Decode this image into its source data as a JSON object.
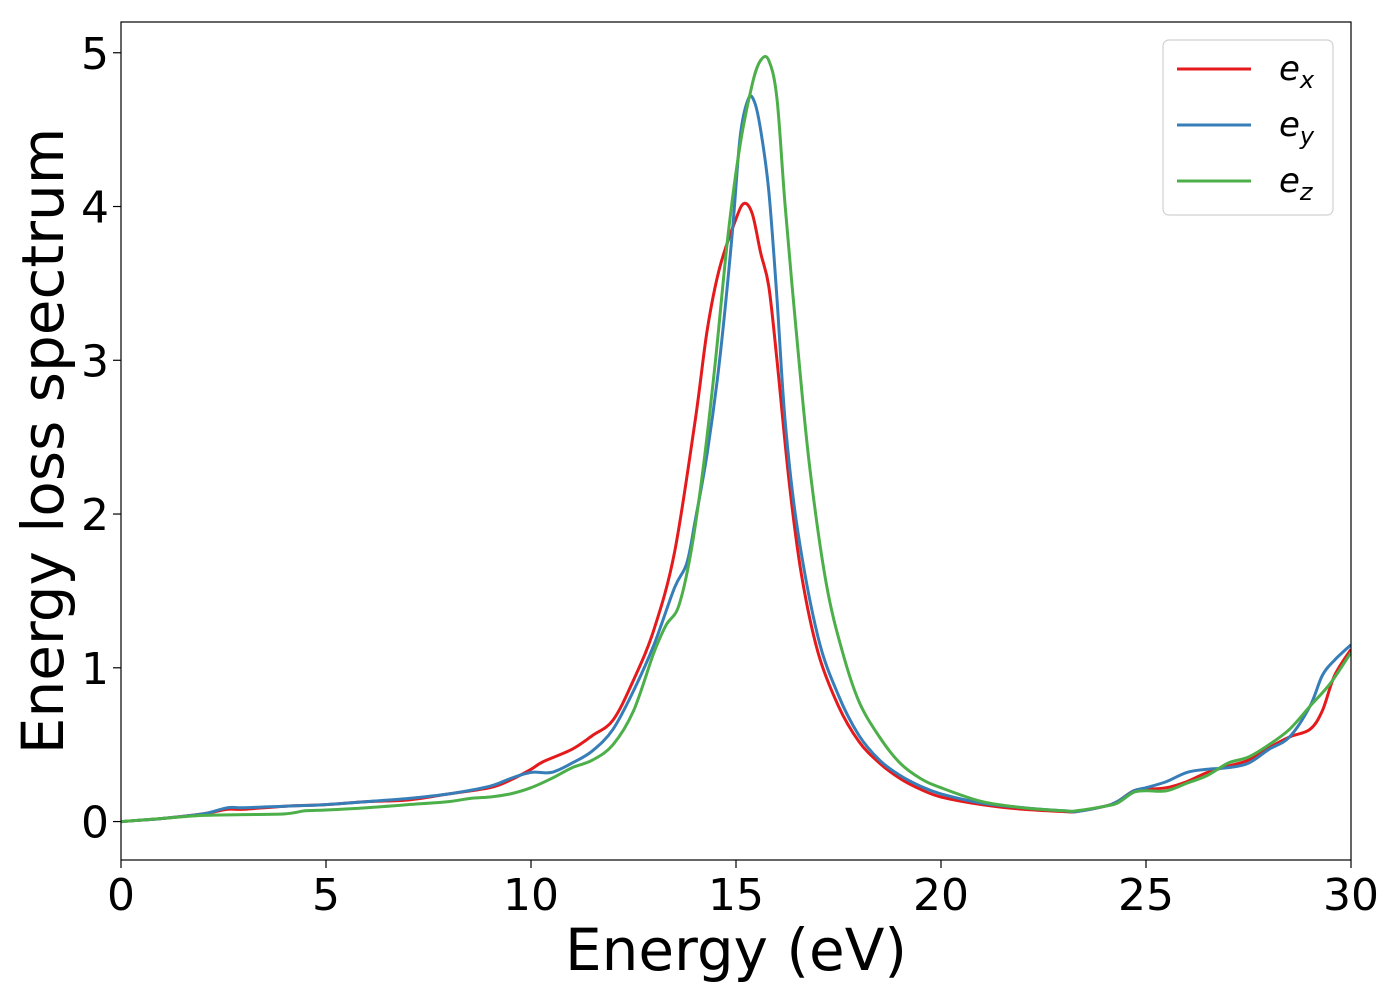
{
  "chart_data": {
    "type": "line",
    "title": "",
    "xlabel": "Energy (eV)",
    "ylabel": "Energy loss spectrum",
    "xlim": [
      0,
      30
    ],
    "ylim": [
      -0.25,
      5.2
    ],
    "xticks": [
      0,
      5,
      10,
      15,
      20,
      25,
      30
    ],
    "yticks": [
      0,
      1,
      2,
      3,
      4,
      5
    ],
    "grid": false,
    "legend_position": "top-right",
    "series": [
      {
        "name": "e_x",
        "label_base": "e",
        "label_sub": "x",
        "color": "#e41a1c",
        "x": [
          0,
          1,
          2,
          2.6,
          3,
          4,
          5,
          6,
          7,
          8,
          9,
          9.5,
          10,
          10.3,
          11,
          11.5,
          12,
          12.5,
          13,
          13.5,
          14,
          14.3,
          14.6,
          15,
          15.2,
          15.4,
          15.6,
          15.8,
          16,
          16.3,
          16.6,
          17,
          17.5,
          18,
          18.5,
          19,
          19.5,
          20,
          21,
          22,
          23,
          23.3,
          24,
          24.3,
          24.7,
          25,
          25.5,
          26,
          26.5,
          27,
          27.5,
          28,
          28.5,
          29,
          29.3,
          29.6,
          30
        ],
        "y": [
          0,
          0.02,
          0.05,
          0.08,
          0.08,
          0.1,
          0.11,
          0.13,
          0.14,
          0.18,
          0.22,
          0.27,
          0.34,
          0.39,
          0.47,
          0.56,
          0.66,
          0.92,
          1.25,
          1.75,
          2.6,
          3.2,
          3.6,
          3.92,
          4.02,
          3.95,
          3.7,
          3.48,
          3.0,
          2.2,
          1.6,
          1.1,
          0.75,
          0.52,
          0.38,
          0.28,
          0.21,
          0.16,
          0.11,
          0.08,
          0.065,
          0.065,
          0.1,
          0.13,
          0.2,
          0.21,
          0.22,
          0.26,
          0.32,
          0.36,
          0.4,
          0.48,
          0.55,
          0.6,
          0.72,
          0.95,
          1.12
        ]
      },
      {
        "name": "e_y",
        "label_base": "e",
        "label_sub": "y",
        "color": "#377eb8",
        "x": [
          0,
          1,
          2,
          2.6,
          3,
          4,
          5,
          6,
          7,
          8,
          9,
          9.5,
          10,
          10.5,
          11,
          11.5,
          12,
          12.5,
          13,
          13.5,
          13.8,
          14,
          14.3,
          14.6,
          14.9,
          15.1,
          15.3,
          15.45,
          15.6,
          15.8,
          16,
          16.2,
          16.5,
          17,
          17.5,
          18,
          18.5,
          19,
          19.5,
          20,
          21,
          22,
          23,
          23.3,
          24,
          24.3,
          24.7,
          25,
          25.5,
          26,
          26.5,
          27,
          27.5,
          28,
          28.5,
          29,
          29.3,
          29.6,
          30
        ],
        "y": [
          0,
          0.02,
          0.05,
          0.09,
          0.09,
          0.1,
          0.11,
          0.13,
          0.15,
          0.18,
          0.23,
          0.28,
          0.32,
          0.32,
          0.38,
          0.46,
          0.6,
          0.85,
          1.15,
          1.52,
          1.68,
          1.95,
          2.4,
          3.0,
          3.8,
          4.45,
          4.7,
          4.68,
          4.5,
          4.1,
          3.4,
          2.6,
          1.9,
          1.2,
          0.82,
          0.56,
          0.4,
          0.3,
          0.23,
          0.18,
          0.12,
          0.09,
          0.07,
          0.065,
          0.1,
          0.13,
          0.2,
          0.22,
          0.26,
          0.32,
          0.34,
          0.35,
          0.38,
          0.47,
          0.55,
          0.75,
          0.95,
          1.05,
          1.15
        ]
      },
      {
        "name": "e_z",
        "label_base": "e",
        "label_sub": "z",
        "color": "#4daf4a",
        "x": [
          0,
          1,
          2,
          3,
          4,
          4.5,
          5,
          6,
          7,
          8,
          8.5,
          9,
          9.5,
          10,
          10.5,
          11,
          11.5,
          12,
          12.5,
          13,
          13.3,
          13.6,
          13.9,
          14.2,
          14.5,
          14.8,
          15.1,
          15.4,
          15.6,
          15.8,
          16.0,
          16.2,
          16.5,
          16.8,
          17.2,
          17.6,
          18,
          18.5,
          19,
          19.5,
          20,
          21,
          22,
          23,
          23.3,
          24,
          24.3,
          24.7,
          25,
          25.5,
          26,
          26.5,
          27,
          27.5,
          28,
          28.5,
          29,
          29.5,
          30
        ],
        "y": [
          0,
          0.02,
          0.04,
          0.045,
          0.05,
          0.07,
          0.075,
          0.09,
          0.11,
          0.13,
          0.15,
          0.16,
          0.18,
          0.22,
          0.28,
          0.35,
          0.4,
          0.5,
          0.72,
          1.1,
          1.28,
          1.4,
          1.75,
          2.3,
          3.0,
          3.8,
          4.4,
          4.8,
          4.95,
          4.95,
          4.7,
          4.0,
          3.1,
          2.3,
          1.55,
          1.1,
          0.78,
          0.55,
          0.38,
          0.28,
          0.22,
          0.13,
          0.09,
          0.07,
          0.07,
          0.1,
          0.12,
          0.19,
          0.2,
          0.2,
          0.25,
          0.3,
          0.38,
          0.42,
          0.5,
          0.6,
          0.75,
          0.9,
          1.1
        ]
      }
    ]
  }
}
